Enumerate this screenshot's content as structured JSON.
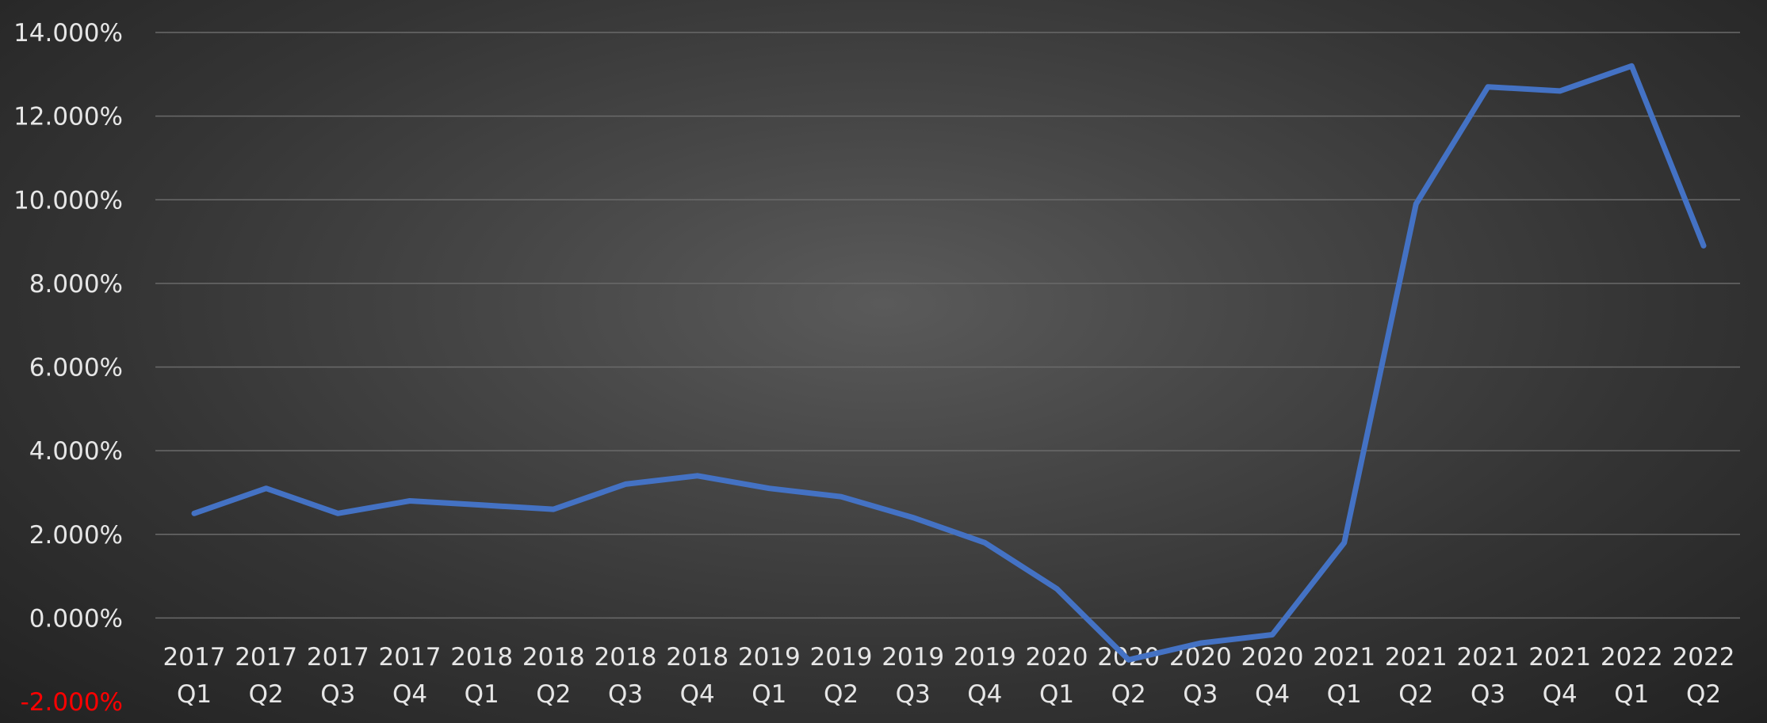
{
  "chart_data": {
    "type": "line",
    "title": "",
    "xlabel": "",
    "ylabel": "",
    "ylim": [
      -2,
      14
    ],
    "y_ticks": [
      "-2.000%",
      "0.000%",
      "2.000%",
      "4.000%",
      "6.000%",
      "8.000%",
      "10.000%",
      "12.000%",
      "14.000%"
    ],
    "y_tick_values": [
      -2,
      0,
      2,
      4,
      6,
      8,
      10,
      12,
      14
    ],
    "negative_tick_color": "#ff0000",
    "grid": true,
    "legend": "none",
    "categories": [
      {
        "year": "2017",
        "quarter": "Q1"
      },
      {
        "year": "2017",
        "quarter": "Q2"
      },
      {
        "year": "2017",
        "quarter": "Q3"
      },
      {
        "year": "2017",
        "quarter": "Q4"
      },
      {
        "year": "2018",
        "quarter": "Q1"
      },
      {
        "year": "2018",
        "quarter": "Q2"
      },
      {
        "year": "2018",
        "quarter": "Q3"
      },
      {
        "year": "2018",
        "quarter": "Q4"
      },
      {
        "year": "2019",
        "quarter": "Q1"
      },
      {
        "year": "2019",
        "quarter": "Q2"
      },
      {
        "year": "2019",
        "quarter": "Q3"
      },
      {
        "year": "2019",
        "quarter": "Q4"
      },
      {
        "year": "2020",
        "quarter": "Q1"
      },
      {
        "year": "2020",
        "quarter": "Q2"
      },
      {
        "year": "2020",
        "quarter": "Q3"
      },
      {
        "year": "2020",
        "quarter": "Q4"
      },
      {
        "year": "2021",
        "quarter": "Q1"
      },
      {
        "year": "2021",
        "quarter": "Q2"
      },
      {
        "year": "2021",
        "quarter": "Q3"
      },
      {
        "year": "2021",
        "quarter": "Q4"
      },
      {
        "year": "2022",
        "quarter": "Q1"
      },
      {
        "year": "2022",
        "quarter": "Q2"
      }
    ],
    "series": [
      {
        "color": "#4472c4",
        "values": [
          2.5,
          3.1,
          2.5,
          2.8,
          2.7,
          2.6,
          3.2,
          3.4,
          3.1,
          2.9,
          2.4,
          1.8,
          0.7,
          -1.0,
          -0.6,
          -0.4,
          1.8,
          9.9,
          12.7,
          12.6,
          13.2,
          8.9
        ]
      }
    ]
  }
}
